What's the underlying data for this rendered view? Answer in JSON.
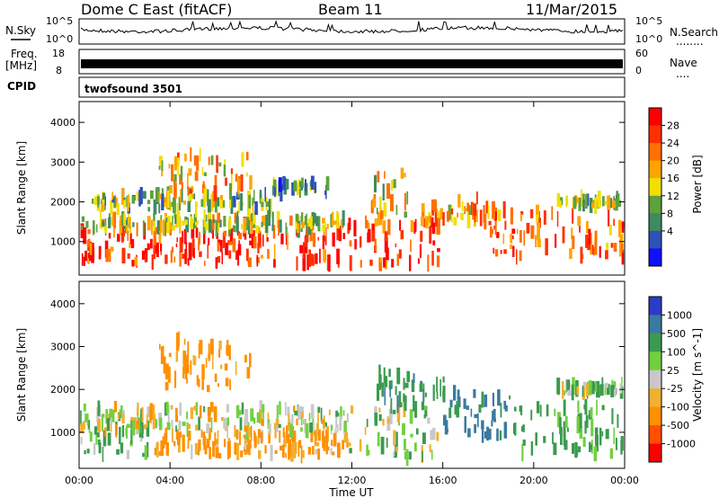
{
  "header": {
    "radar_title": "Dome C East (fitACF)",
    "beam_label": "Beam 11",
    "date_label": "11/Mar/2015"
  },
  "noise_panel": {
    "left_label": "N.Sky",
    "left_ticks": [
      "10^5",
      "10^0"
    ],
    "right_ticks": [
      "10^5",
      "10^0"
    ],
    "right_label": "N.Search",
    "legend_dots": "........"
  },
  "freq_panel": {
    "left_label_top": "Freq.",
    "left_label_unit": "[MHz]",
    "left_ticks": [
      "18",
      "8"
    ],
    "right_ticks": [
      "60",
      "0"
    ],
    "right_label": "Nave",
    "legend_dots": "...."
  },
  "cpid_panel": {
    "label": "CPID",
    "program": "twofsound 3501"
  },
  "icons": {
    "legend_dots": "dotted-line"
  },
  "colors": {
    "power_scale": [
      "#1010ff",
      "#2f50b8",
      "#3f8a5f",
      "#5ea13d",
      "#f0e000",
      "#ffa500",
      "#ff7000",
      "#ff3000",
      "#ff0000"
    ],
    "velocity_scale": [
      "#ff0000",
      "#ff5000",
      "#ff9000",
      "#f0b030",
      "#c8c8c8",
      "#70d040",
      "#3b9a4f",
      "#3b7aa0",
      "#2c3cc8"
    ],
    "noise_trace": "#000000"
  },
  "chart_data": [
    {
      "type": "heatmap",
      "name": "Power",
      "xlabel": "",
      "ylabel": "Slant Range [km]",
      "xlim": [
        0,
        24
      ],
      "ylim": [
        180,
        4500
      ],
      "yticks": [
        "1000",
        "2000",
        "3000",
        "4000"
      ],
      "colorbar_label": "Power [dB]",
      "colorbar_ticks": [
        "4",
        "8",
        "12",
        "16",
        "20",
        "24",
        "28"
      ],
      "colorbar_range": [
        0,
        30
      ],
      "regions": [
        {
          "t0": 0.0,
          "t1": 11.8,
          "r0": 450,
          "r1": 1300,
          "level": 26
        },
        {
          "t0": 0.0,
          "t1": 11.8,
          "r0": 1300,
          "r1": 1600,
          "level": 14
        },
        {
          "t0": 0.5,
          "t1": 8.5,
          "r0": 1800,
          "r1": 2200,
          "level": 12
        },
        {
          "t0": 3.5,
          "t1": 7.5,
          "r0": 2200,
          "r1": 3200,
          "level": 18
        },
        {
          "t0": 8.5,
          "t1": 11.0,
          "r0": 2200,
          "r1": 2500,
          "level": 10
        },
        {
          "t0": 11.8,
          "t1": 15.8,
          "r0": 400,
          "r1": 1500,
          "level": 24
        },
        {
          "t0": 12.8,
          "t1": 14.5,
          "r0": 1500,
          "r1": 2800,
          "level": 16
        },
        {
          "t0": 15.0,
          "t1": 18.0,
          "r0": 1500,
          "r1": 2100,
          "level": 20
        },
        {
          "t0": 18.0,
          "t1": 24.0,
          "r0": 600,
          "r1": 1800,
          "level": 22
        },
        {
          "t0": 21.0,
          "t1": 24.0,
          "r0": 1900,
          "r1": 2100,
          "level": 12
        }
      ]
    },
    {
      "type": "heatmap",
      "name": "Velocity",
      "xlabel": "Time UT",
      "ylabel": "Slant Range [km]",
      "xlim": [
        0,
        24
      ],
      "ylim": [
        180,
        4500
      ],
      "xticks": [
        "00:00",
        "04:00",
        "08:00",
        "12:00",
        "16:00",
        "20:00",
        "00:00"
      ],
      "yticks": [
        "1000",
        "2000",
        "3000",
        "4000"
      ],
      "colorbar_label": "Velocity [m s^-1]",
      "colorbar_ticks": [
        "1000",
        "500",
        "100",
        "25",
        "-25",
        "-100",
        "-500",
        "-1000"
      ],
      "regions": [
        {
          "t0": 0.0,
          "t1": 3.0,
          "r0": 450,
          "r1": 1400,
          "level": 150
        },
        {
          "t0": 3.0,
          "t1": 11.8,
          "r0": 450,
          "r1": 1000,
          "level": -150
        },
        {
          "t0": 0.0,
          "t1": 11.8,
          "r0": 1000,
          "r1": 1600,
          "level": 0
        },
        {
          "t0": 3.5,
          "t1": 7.5,
          "r0": 2000,
          "r1": 3200,
          "level": -200
        },
        {
          "t0": 11.8,
          "t1": 15.8,
          "r0": 400,
          "r1": 1600,
          "level": 50
        },
        {
          "t0": 13.0,
          "t1": 16.0,
          "r0": 1600,
          "r1": 2400,
          "level": 400
        },
        {
          "t0": 16.0,
          "t1": 19.0,
          "r0": 900,
          "r1": 2000,
          "level": 600
        },
        {
          "t0": 19.0,
          "t1": 24.0,
          "r0": 500,
          "r1": 1600,
          "level": 200
        },
        {
          "t0": 21.0,
          "t1": 24.0,
          "r0": 1900,
          "r1": 2100,
          "level": 100
        }
      ]
    }
  ]
}
